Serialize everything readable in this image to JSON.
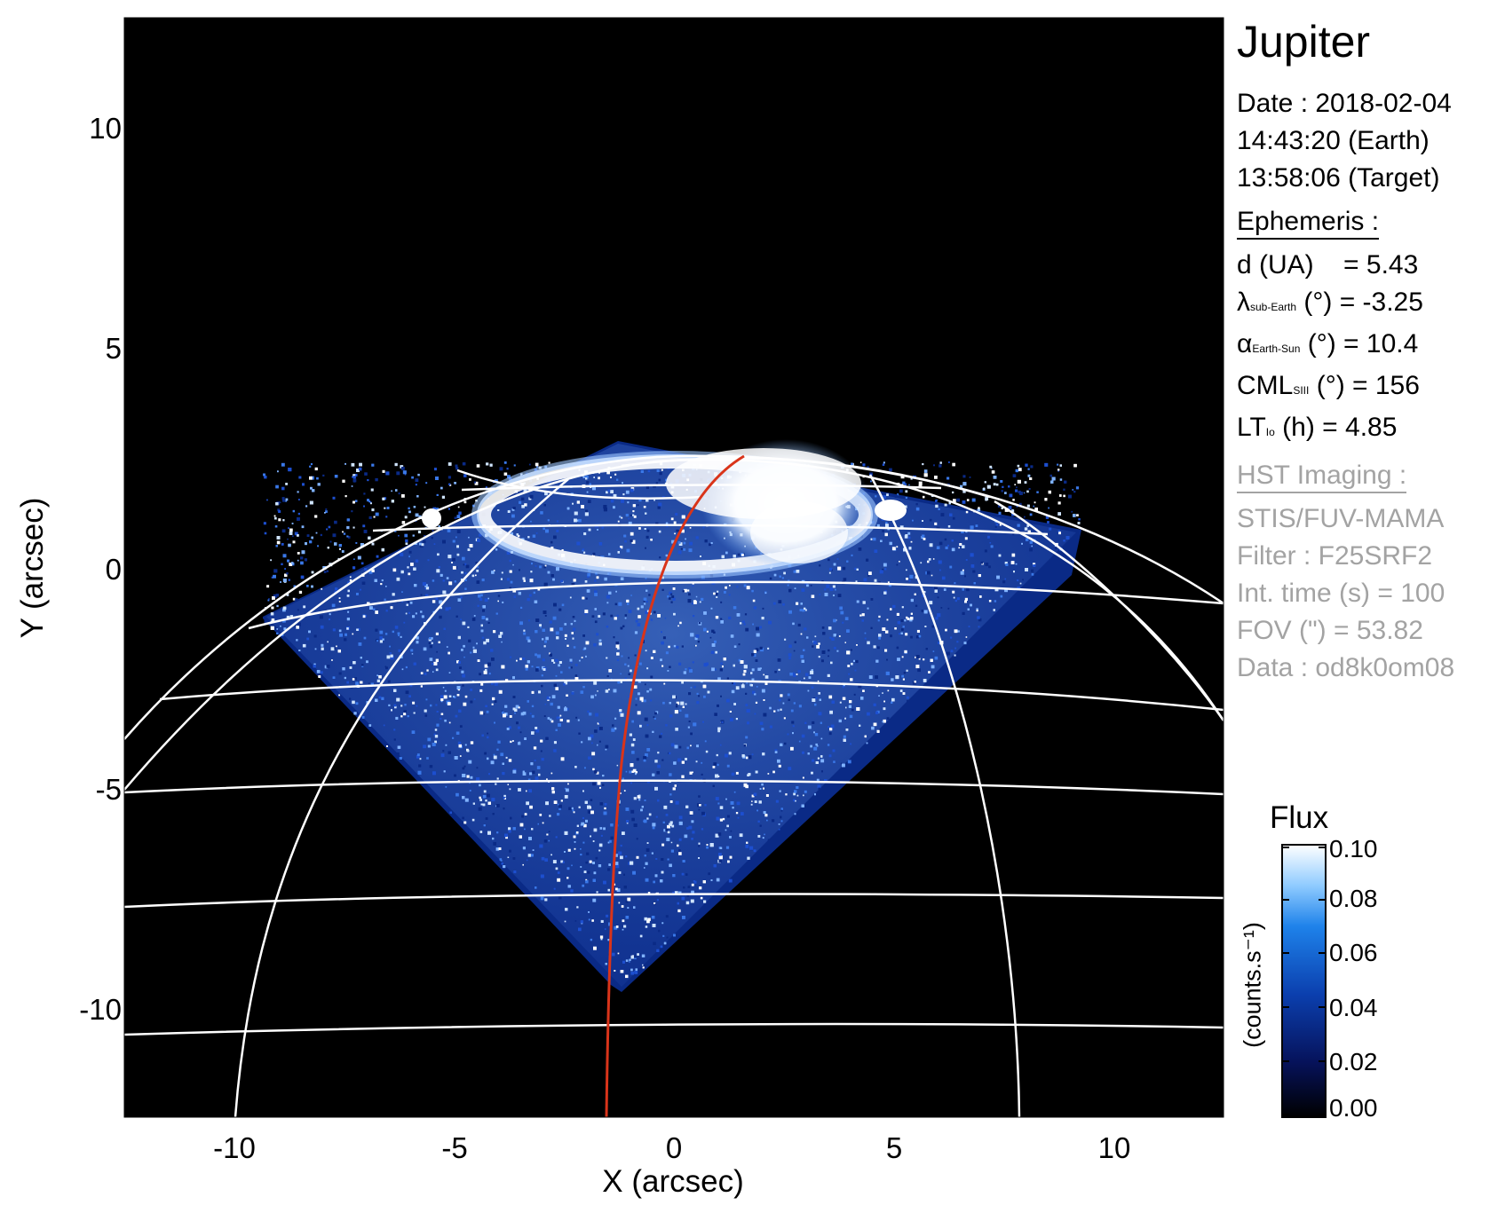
{
  "figure": {
    "title": "Jupiter",
    "xlabel": "X (arcsec)",
    "ylabel": "Y (arcsec)",
    "x_ticks": [
      "-10",
      "-5",
      "0",
      "5",
      "10"
    ],
    "y_ticks": [
      "10",
      "5",
      "0",
      "-5",
      "-10"
    ],
    "xlim": [
      -12.5,
      12.5
    ],
    "ylim": [
      -12.5,
      12.5
    ],
    "image_description_colors": {
      "background": "#000000",
      "grid": "#ffffff",
      "footprint_line": "#d9341a"
    }
  },
  "date_block": {
    "date": "Date : 2018-02-04",
    "time_earth": "14:43:20 (Earth)",
    "time_target": "13:58:06 (Target)"
  },
  "ephemeris": {
    "heading": "Ephemeris :",
    "d": {
      "label": "d (UA)",
      "value": "= 5.43"
    },
    "lambda": {
      "symbol": "λ",
      "subscript": "sub-Earth",
      "rest": "(°) = -3.25"
    },
    "alpha": {
      "symbol": "α",
      "subscript": "Earth-Sun",
      "rest": "(°) = 10.4"
    },
    "cml": {
      "symbol": "CML",
      "subscript": "SIII",
      "rest": "(°) = 156"
    },
    "lt": {
      "symbol": "LT",
      "subscript": "Io",
      "rest": "(h) = 4.85"
    }
  },
  "imaging": {
    "heading": "HST Imaging :",
    "instrument": "STIS/FUV-MAMA",
    "filter": "Filter : F25SRF2",
    "int_time": "Int. time (s) = 100",
    "fov": "FOV (\") = 53.82",
    "data": "Data : od8k0om08"
  },
  "colorbar": {
    "title": "Flux",
    "unit": "(counts.s⁻¹)",
    "ticks": [
      "0.10",
      "0.08",
      "0.06",
      "0.04",
      "0.02",
      "0.00"
    ],
    "colors": [
      "#000000",
      "#06125a",
      "#0b3fae",
      "#1e82ea",
      "#8fcbff",
      "#ffffff"
    ]
  }
}
